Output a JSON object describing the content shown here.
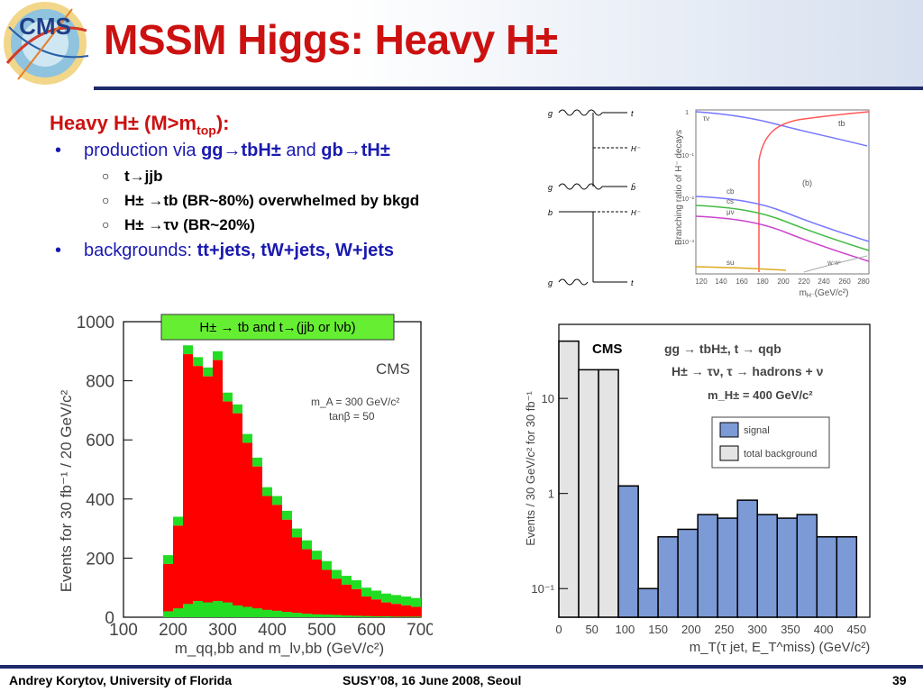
{
  "slide": {
    "logo_text": "CMS",
    "title": "MSSM Higgs: Heavy H±",
    "page_number": "39"
  },
  "bullets": {
    "heading_main": "Heavy H± (M>m",
    "heading_sub": "top",
    "heading_tail": "):",
    "item1_prefix": "production via ",
    "item1_bold1": "gg→tbH±",
    "item1_mid": " and ",
    "item1_bold2": "gb→tH±",
    "sub1": "t→jjb",
    "sub2": "H± →tb (BR~80%) overwhelmed by bkgd",
    "sub3": "H± →τν (BR~20%)",
    "item2_prefix": "backgrounds: ",
    "item2_bold": "tt+jets, tW+jets, W+jets"
  },
  "diagram": {
    "labels_top": [
      "g",
      "t",
      "H⁻",
      "g",
      "b̄"
    ],
    "labels_bottom": [
      "b",
      "H⁻",
      "g",
      "t"
    ]
  },
  "br_plot": {
    "ylabel": "Branching ratio of H⁻ decays",
    "xlabel": "m",
    "xlabel_sub": "H⁻",
    "xlabel_tail": "(GeV/c²)",
    "panel_label": "(b)",
    "curves": [
      "τν",
      "tb",
      "cb",
      "cs",
      "μν",
      "su",
      "W⁺h⁰"
    ],
    "xticks": [
      "120",
      "140",
      "160",
      "180",
      "200",
      "220",
      "240",
      "260",
      "280"
    ],
    "yticks": [
      "1",
      "10⁻¹",
      "10⁻²",
      "10⁻³"
    ]
  },
  "hist_left": {
    "caption": "H± → tb and t→(jjb or lνb)",
    "label": "CMS",
    "annot1": "m_A = 300 GeV/c²",
    "annot2": "tanβ = 50",
    "ylabel": "Events for 30 fb⁻¹ / 20 GeV/c²",
    "xlabel": "m_qq,bb and m_lν,bb (GeV/c²)",
    "xticks": [
      "100",
      "200",
      "300",
      "400",
      "500",
      "600",
      "700"
    ],
    "yticks": [
      "0",
      "200",
      "400",
      "600",
      "800",
      "1000"
    ]
  },
  "hist_right": {
    "label": "CMS",
    "line1": "gg → tbH±, t → qqb",
    "line2": "H± → τν, τ → hadrons + ν",
    "line3": "m_H± = 400 GeV/c²",
    "legend_signal": "signal",
    "legend_bkg": "total background",
    "ylabel": "Events / 30 GeV/c² for 30 fb⁻¹",
    "xlabel": "m_T(τ jet, E_T^miss) (GeV/c²)",
    "xticks": [
      "0",
      "50",
      "100",
      "150",
      "200",
      "250",
      "300",
      "350",
      "400",
      "450"
    ],
    "yticks": [
      "10",
      "1",
      "10⁻¹"
    ]
  },
  "chart_data": [
    {
      "type": "bar",
      "title": "",
      "xlabel": "m_qq,bb and m_lν,bb (GeV/c²)",
      "ylabel": "Events for 30 fb⁻¹ / 20 GeV/c²",
      "xlim": [
        100,
        700
      ],
      "ylim": [
        0,
        1000
      ],
      "bin_edges": [
        180,
        200,
        220,
        240,
        260,
        280,
        300,
        320,
        340,
        360,
        380,
        400,
        420,
        440,
        460,
        480,
        500,
        520,
        540,
        560,
        580,
        600,
        620,
        640,
        660,
        680,
        700
      ],
      "series": [
        {
          "name": "total",
          "values": [
            210,
            340,
            920,
            880,
            845,
            900,
            760,
            720,
            620,
            540,
            440,
            410,
            360,
            300,
            260,
            225,
            190,
            160,
            140,
            125,
            100,
            90,
            80,
            75,
            70,
            65
          ]
        },
        {
          "name": "signal",
          "values": [
            20,
            30,
            45,
            55,
            50,
            55,
            50,
            40,
            35,
            30,
            25,
            22,
            18,
            15,
            12,
            10,
            9,
            8,
            6,
            5,
            4,
            3,
            3,
            2,
            2,
            2
          ]
        }
      ]
    },
    {
      "type": "bar",
      "title": "",
      "xlabel": "m_T(τ jet, E_T^miss) (GeV/c²)",
      "ylabel": "Events / 30 GeV/c² for 30 fb⁻¹",
      "xlim": [
        0,
        470
      ],
      "ylim": [
        0.05,
        60
      ],
      "log_y": true,
      "bin_edges": [
        0,
        30,
        60,
        90,
        120,
        150,
        180,
        210,
        240,
        270,
        300,
        330,
        360,
        390,
        420,
        450
      ],
      "series": [
        {
          "name": "signal",
          "values": [
            0,
            0,
            0,
            1.2,
            0.1,
            0.35,
            0.42,
            0.6,
            0.55,
            0.85,
            0.6,
            0.55,
            0.6,
            0.35,
            0.35
          ]
        },
        {
          "name": "total background",
          "values": [
            40,
            20,
            20,
            1.2,
            0.1,
            0,
            0,
            0,
            0,
            0,
            0,
            0,
            0,
            0,
            0
          ]
        }
      ]
    }
  ],
  "footer": {
    "author": "Andrey Korytov, University of Florida",
    "event": "SUSY’08, 16 June 2008, Seoul"
  }
}
